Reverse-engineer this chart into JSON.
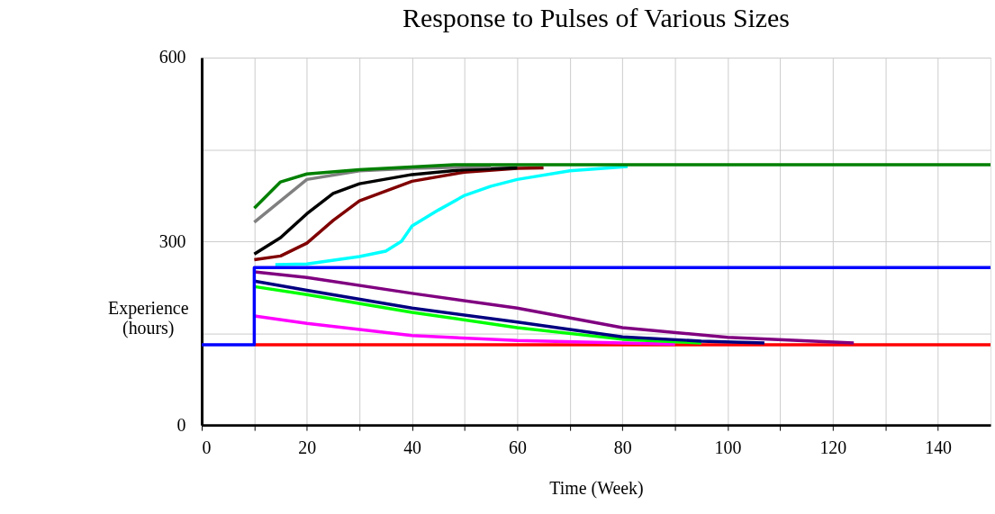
{
  "chart_data": {
    "type": "line",
    "title": "Response to Pulses of Various Sizes",
    "xlabel": "Time (Week)",
    "ylabel": "Experience (hours)",
    "xlim": [
      0,
      150
    ],
    "ylim": [
      0,
      600
    ],
    "xticks": [
      0,
      {
        "value": 10,
        "label": null
      },
      20,
      {
        "value": 30,
        "label": null
      },
      40,
      {
        "value": 50,
        "label": null
      },
      60,
      {
        "value": 70,
        "label": null
      },
      80,
      {
        "value": 90,
        "label": null
      },
      100,
      {
        "value": 110,
        "label": null
      },
      120,
      {
        "value": 130,
        "label": null
      },
      140
    ],
    "yticks": [
      0,
      {
        "value": 150,
        "label": null
      },
      300,
      {
        "value": 450,
        "label": null
      },
      600
    ],
    "grid": true,
    "legend": false,
    "line_style": "solid",
    "marker": "none",
    "series": [
      {
        "color": "#ff0000",
        "x": [
          10,
          150
        ],
        "values": [
          131,
          131
        ]
      },
      {
        "color": "#ff00ff",
        "x": [
          10,
          20,
          40,
          60,
          80,
          90
        ],
        "values": [
          178,
          166,
          146,
          138,
          134,
          132
        ]
      },
      {
        "color": "#00ff00",
        "x": [
          10,
          20,
          40,
          60,
          80,
          95
        ],
        "values": [
          226,
          213,
          184,
          159,
          140,
          134
        ]
      },
      {
        "color": "#000080",
        "x": [
          10,
          20,
          40,
          60,
          80,
          95,
          107
        ],
        "values": [
          235,
          220,
          191,
          168,
          144,
          137,
          134
        ]
      },
      {
        "color": "#800080",
        "x": [
          10,
          20,
          40,
          60,
          80,
          100,
          124
        ],
        "values": [
          250,
          241,
          215,
          191,
          159,
          143,
          134
        ]
      },
      {
        "color": "#00ffff",
        "x": [
          14,
          20,
          30,
          35,
          38,
          40,
          45,
          50,
          55,
          60,
          70,
          81
        ],
        "values": [
          262,
          263,
          275,
          284,
          300,
          325,
          351,
          375,
          390,
          401,
          415,
          422
        ]
      },
      {
        "color": "#800000",
        "x": [
          10,
          15,
          20,
          25,
          30,
          40,
          50,
          60,
          65
        ],
        "values": [
          270,
          276,
          297,
          334,
          366,
          398,
          413,
          419,
          420
        ]
      },
      {
        "color": "#000000",
        "x": [
          10,
          15,
          20,
          25,
          30,
          40,
          50,
          60
        ],
        "values": [
          279,
          306,
          345,
          378,
          394,
          409,
          417,
          420
        ]
      },
      {
        "color": "#808080",
        "x": [
          10,
          20,
          30,
          40,
          55
        ],
        "values": [
          331,
          401,
          415,
          419,
          422
        ]
      },
      {
        "color": "#008000",
        "x": [
          10,
          15,
          20,
          30,
          48,
          150
        ],
        "values": [
          354,
          397,
          410,
          417,
          425,
          425
        ]
      },
      {
        "color": "#0000ff",
        "x": [
          0,
          10,
          10,
          150
        ],
        "values": [
          131,
          131,
          257,
          257
        ]
      }
    ]
  }
}
